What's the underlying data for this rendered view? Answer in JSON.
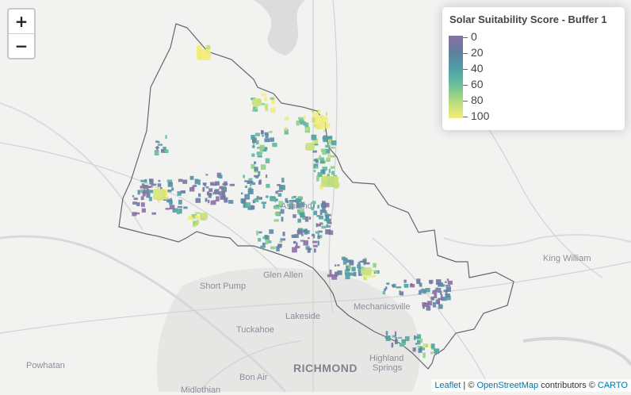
{
  "zoom": {
    "in_label": "+",
    "out_label": "−"
  },
  "legend": {
    "title": "Solar Suitability Score - Buffer 1",
    "ticks": [
      "0",
      "20",
      "40",
      "60",
      "80",
      "100"
    ],
    "colors": {
      "low": "#8b6fa4",
      "mid": "#4f9fa4",
      "high": "#f3ec7a"
    }
  },
  "places": [
    {
      "name": "Ashland",
      "kind": "town"
    },
    {
      "name": "Glen Allen",
      "kind": "town"
    },
    {
      "name": "Short Pump",
      "kind": "town"
    },
    {
      "name": "Lakeside",
      "kind": "town"
    },
    {
      "name": "Tuckahoe",
      "kind": "town"
    },
    {
      "name": "Mechanicsville",
      "kind": "town"
    },
    {
      "name": "King William",
      "kind": "town"
    },
    {
      "name": "Powhatan",
      "kind": "town"
    },
    {
      "name": "Bon Air",
      "kind": "town"
    },
    {
      "name": "RICHMOND",
      "kind": "city"
    },
    {
      "name": "Highland",
      "kind": "town"
    },
    {
      "name": "Springs",
      "kind": "town"
    },
    {
      "name": "Midlothian",
      "kind": "town"
    }
  ],
  "attribution": {
    "leaflet": "Leaflet",
    "sep1": " | © ",
    "osm": "OpenStreetMap",
    "mid": " contributors © ",
    "carto": "CARTO"
  }
}
